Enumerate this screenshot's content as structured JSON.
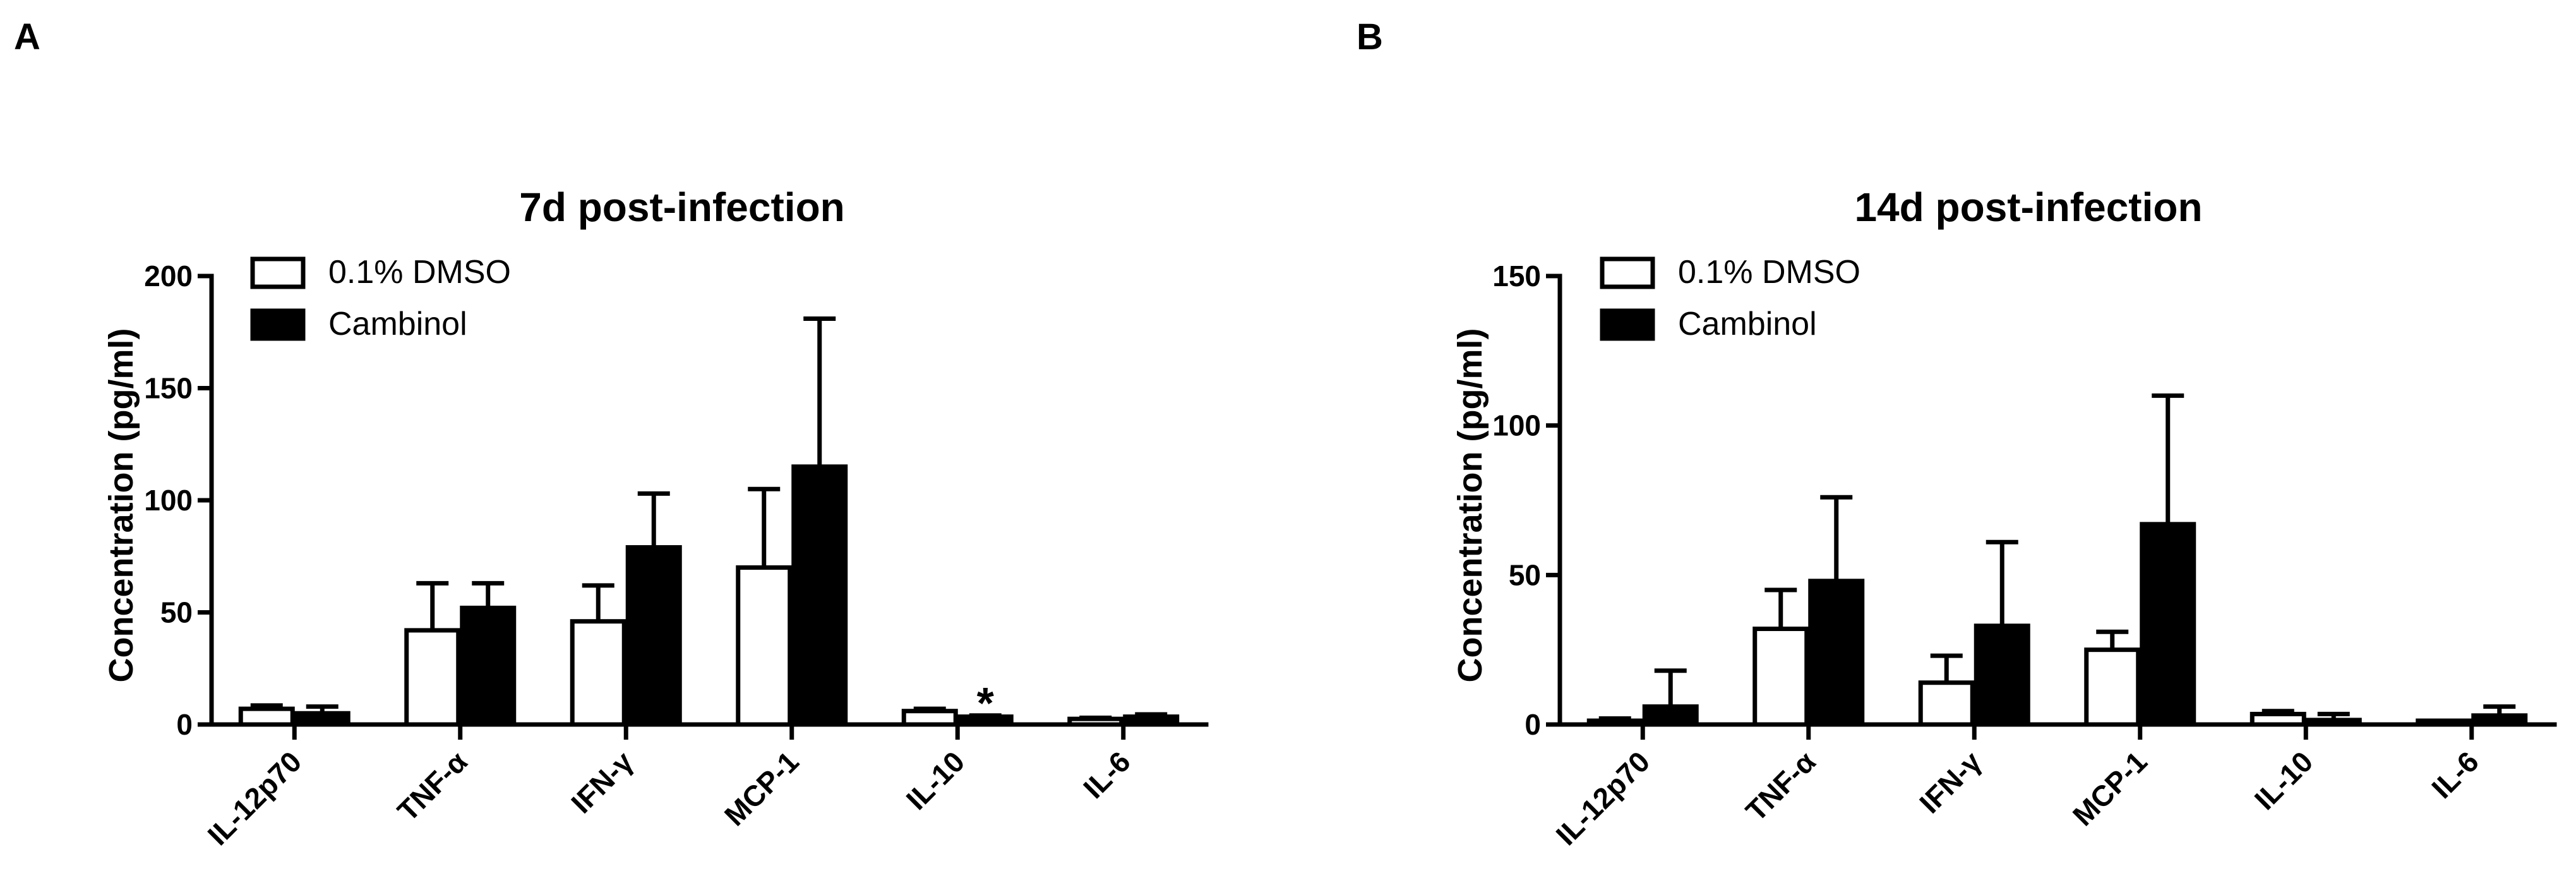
{
  "panels": [
    {
      "label": "A"
    },
    {
      "label": "B"
    }
  ],
  "chart_data": [
    {
      "type": "bar",
      "title": "7d post-infection",
      "ylabel": "Concentration (pg/ml)",
      "xlabel": "",
      "ylim": [
        0,
        200
      ],
      "yticks": [
        0,
        50,
        100,
        150,
        200
      ],
      "categories": [
        "IL-12p70",
        "TNF-α",
        "IFN-γ",
        "MCP-1",
        "IL-10",
        "IL-6"
      ],
      "series": [
        {
          "name": "0.1% DMSO",
          "fill": "#ffffff",
          "values": [
            7,
            42,
            46,
            70,
            6,
            2.5
          ],
          "errors": [
            1.5,
            21,
            16,
            35,
            1,
            0.5
          ]
        },
        {
          "name": "Cambinol",
          "fill": "#000000",
          "values": [
            5,
            52,
            79,
            115,
            3.5,
            3.5
          ],
          "errors": [
            3,
            11,
            24,
            66,
            0.5,
            1
          ]
        }
      ],
      "annotations": [
        {
          "text": "*",
          "category": "IL-10"
        }
      ],
      "legend": "top-left",
      "grid": false
    },
    {
      "type": "bar",
      "title": "14d post-infection",
      "ylabel": "Concentration (pg/ml)",
      "xlabel": "",
      "ylim": [
        0,
        150
      ],
      "yticks": [
        0,
        50,
        100,
        150
      ],
      "categories": [
        "IL-12p70",
        "TNF-α",
        "IFN-γ",
        "MCP-1",
        "IL-10",
        "IL-6"
      ],
      "series": [
        {
          "name": "0.1% DMSO",
          "fill": "#ffffff",
          "values": [
            1,
            32,
            14,
            25,
            3.5,
            0.5
          ],
          "errors": [
            1,
            13,
            9,
            6,
            1,
            0.5
          ]
        },
        {
          "name": "Cambinol",
          "fill": "#000000",
          "values": [
            6,
            48,
            33,
            67,
            1.5,
            3
          ],
          "errors": [
            12,
            28,
            28,
            43,
            2,
            3
          ]
        }
      ],
      "annotations": [],
      "legend": "top-left",
      "grid": false
    }
  ]
}
